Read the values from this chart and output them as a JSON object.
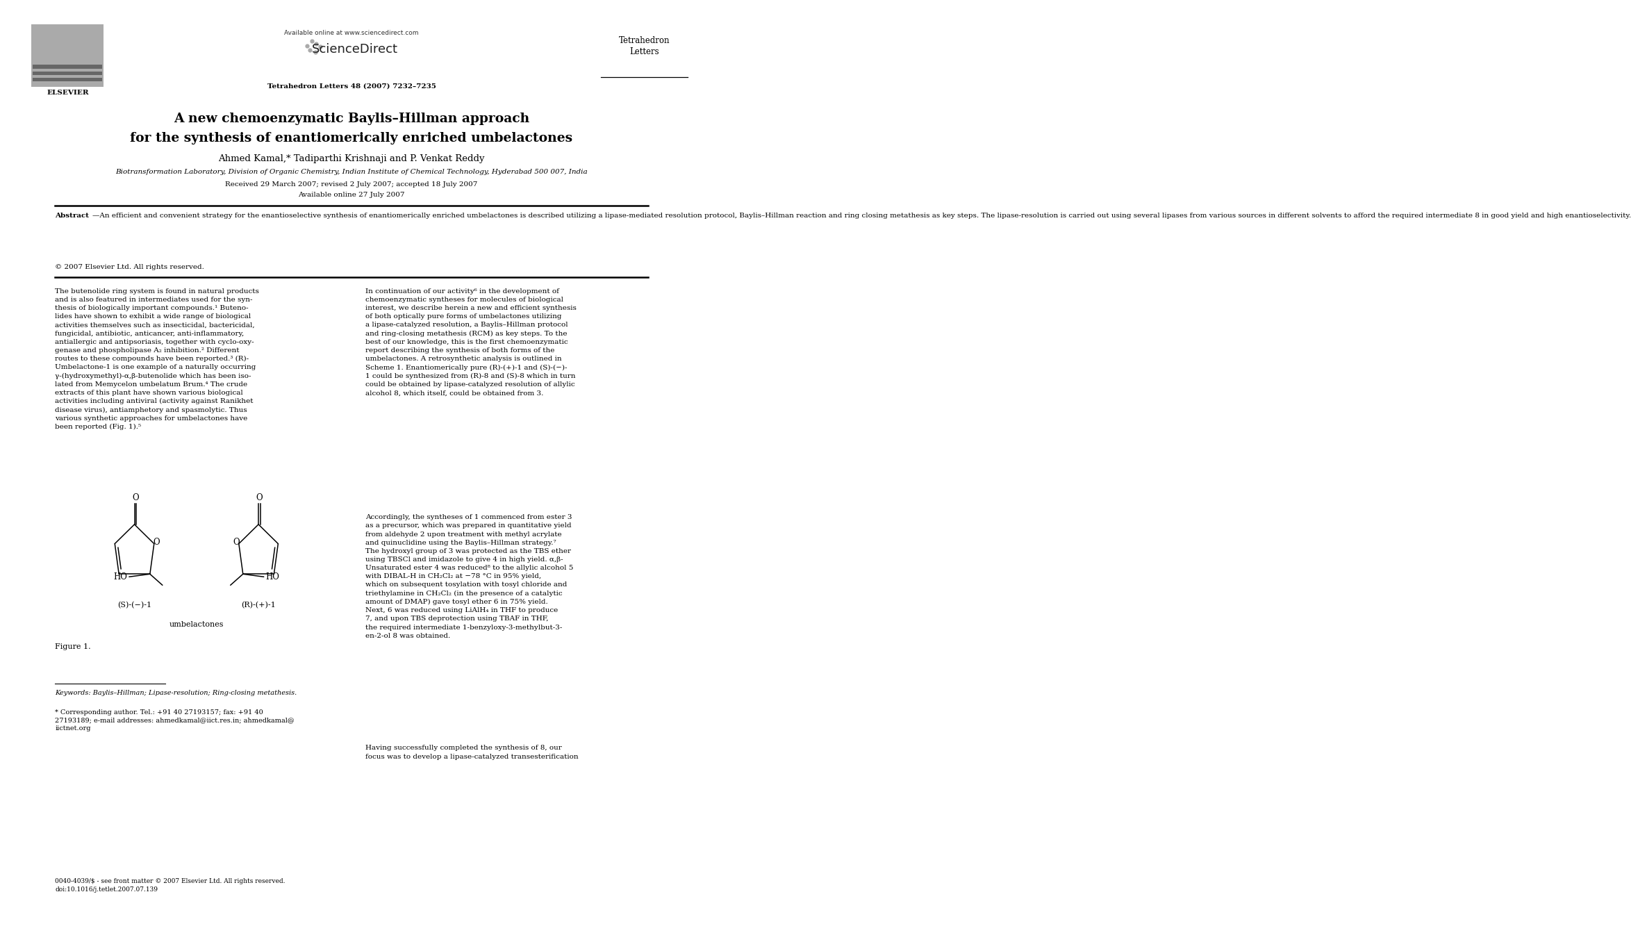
{
  "bg_color": "#ffffff",
  "page_width": 9.92,
  "page_height": 13.23,
  "header_available_online": "Available online at www.sciencedirect.com",
  "header_journal_name": "Tetrahedron\nLetters",
  "header_journal_info": "Tetrahedron Letters 48 (2007) 7232–7235",
  "header_elsevier_text": "ELSEVIER",
  "title_line1": "A new chemoenzymatic Baylis–Hillman approach",
  "title_line2": "for the synthesis of enantiomerically enriched umbelactones",
  "authors": "Ahmed Kamal,* Tadiparthi Krishnaji and P. Venkat Reddy",
  "affiliation": "Biotransformation Laboratory, Division of Organic Chemistry, Indian Institute of Chemical Technology, Hyderabad 500 007, India",
  "received": "Received 29 March 2007; revised 2 July 2007; accepted 18 July 2007",
  "available": "Available online 27 July 2007",
  "abstract_label": "Abstract",
  "abstract_text": "—An efficient and convenient strategy for the enantioselective synthesis of enantiomerically enriched umbelactones is described utilizing a lipase-mediated resolution protocol, Baylis–Hillman reaction and ring closing metathesis as key steps. The lipase-resolution is carried out using several lipases from various sources in different solvents to afford the required intermediate 8 in good yield and high enantioselectivity.",
  "copyright": "© 2007 Elsevier Ltd. All rights reserved.",
  "left_col_text": "The butenolide ring system is found in natural products\nand is also featured in intermediates used for the syn-\nthesis of biologically important compounds.¹ Buteno-\nlides have shown to exhibit a wide range of biological\nactivities themselves such as insecticidal, bactericidal,\nfungicidal, antibiotic, anticancer, anti-inflammatory,\nantiallergic and antipsoriasis, together with cyclo-oxy-\ngenase and phospholipase A₂ inhibition.² Different\nroutes to these compounds have been reported.³ (R)-\nUmbelactone-1 is one example of a naturally occurring\nγ-(hydroxymethyl)-α,β-butenolide which has been iso-\nlated from Memycelon umbelatum Brum.⁴ The crude\nextracts of this plant have shown various biological\nactivities including antiviral (activity against Ranikhet\ndisease virus), antiamphetory and spasmolytic. Thus\nvarious synthetic approaches for umbelactones have\nbeen reported (Fig. 1).⁵",
  "right_col_text1": "In continuation of our activity⁶ in the development of\nchemoenzymatic syntheses for molecules of biological\ninterest, we describe herein a new and efficient synthesis\nof both optically pure forms of umbelactones utilizing\na lipase-catalyzed resolution, a Baylis–Hillman protocol\nand ring-closing metathesis (RCM) as key steps. To the\nbest of our knowledge, this is the first chemoenzymatic\nreport describing the synthesis of both forms of the\numbelactones. A retrosynthetic analysis is outlined in\nScheme 1. Enantiomerically pure (R)-(+)-1 and (S)-(−)-\n1 could be synthesized from (R)-8 and (S)-8 which in turn\ncould be obtained by lipase-catalyzed resolution of allylic\nalcohol 8, which itself, could be obtained from 3.",
  "right_col_text2": "Accordingly, the syntheses of 1 commenced from ester 3\nas a precursor, which was prepared in quantitative yield\nfrom aldehyde 2 upon treatment with methyl acrylate\nand quinuclidine using the Baylis–Hillman strategy.⁷\nThe hydroxyl group of 3 was protected as the TBS ether\nusing TBSCl and imidazole to give 4 in high yield. α,β-\nUnsaturated ester 4 was reduced⁸ to the allylic alcohol 5\nwith DIBAL-H in CH₂Cl₂ at −78 °C in 95% yield,\nwhich on subsequent tosylation with tosyl chloride and\ntriethylamine in CH₂Cl₂ (in the presence of a catalytic\namount of DMAP) gave tosyl ether 6 in 75% yield.\nNext, 6 was reduced using LiAlH₄ in THF to produce\n7, and upon TBS deprotection using TBAF in THF,\nthe required intermediate 1-benzyloxy-3-methylbut-3-\nen-2-ol 8 was obtained.",
  "right_col_text3": "Having successfully completed the synthesis of 8, our\nfocus was to develop a lipase-catalyzed transesterification",
  "figure_caption": "Figure 1.",
  "figure_label_left": "(S)-(−)-1",
  "figure_label_right": "(R)-(+)-1",
  "figure_label_center": "umbelactones",
  "keywords_text": "Keywords: Baylis–Hillman; Lipase-resolution; Ring-closing metathesis.",
  "corr_author_text": "* Corresponding author. Tel.: +91 40 27193157; fax: +91 40\n27193189; e-mail addresses: ahmedkamal@iict.res.in; ahmedkamal@\niictnet.org",
  "footer_text": "0040-4039/$ - see front matter © 2007 Elsevier Ltd. All rights reserved.\ndoi:10.1016/j.tetlet.2007.07.139"
}
